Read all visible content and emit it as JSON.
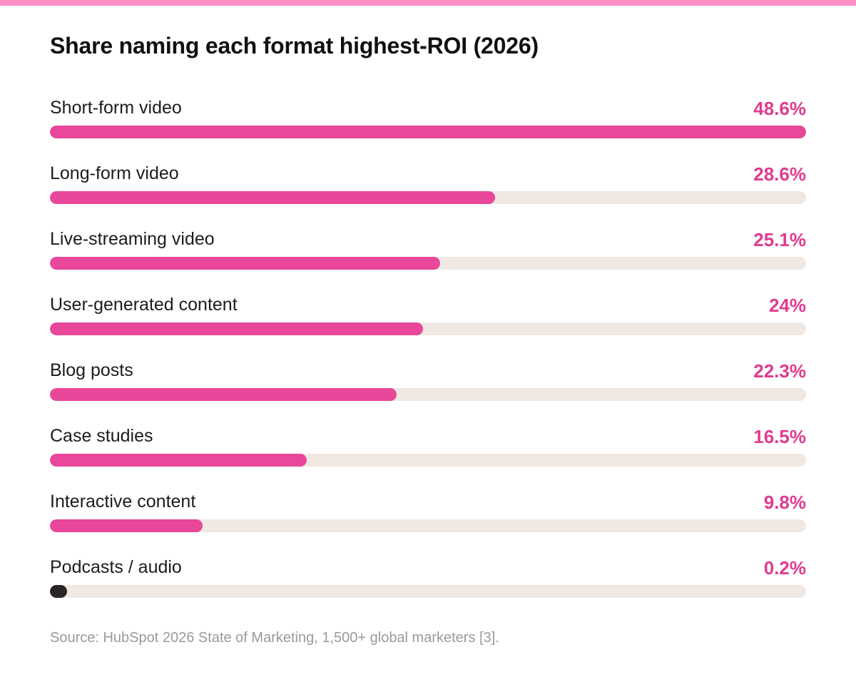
{
  "colors": {
    "accent": "#e8479a",
    "top_stripe": "#fb8fc8",
    "track": "#f0e8e3",
    "small_value_fill": "#2a2424",
    "value_text": "#e03b8f"
  },
  "chart_data": {
    "type": "bar",
    "orientation": "horizontal",
    "title": "Share naming each format highest-ROI (2026)",
    "xlim": [
      0,
      48.6
    ],
    "unit": "%",
    "grid": false,
    "categories": [
      "Short-form video",
      "Long-form video",
      "Live-streaming video",
      "User-generated content",
      "Blog posts",
      "Case studies",
      "Interactive content",
      "Podcasts / audio"
    ],
    "values": [
      48.6,
      28.6,
      25.1,
      24,
      22.3,
      16.5,
      9.8,
      0.2
    ],
    "value_labels": [
      "48.6%",
      "28.6%",
      "25.1%",
      "24%",
      "22.3%",
      "16.5%",
      "9.8%",
      "0.2%"
    ]
  },
  "source": "Source: HubSpot 2026 State of Marketing, 1,500+ global marketers [3]."
}
